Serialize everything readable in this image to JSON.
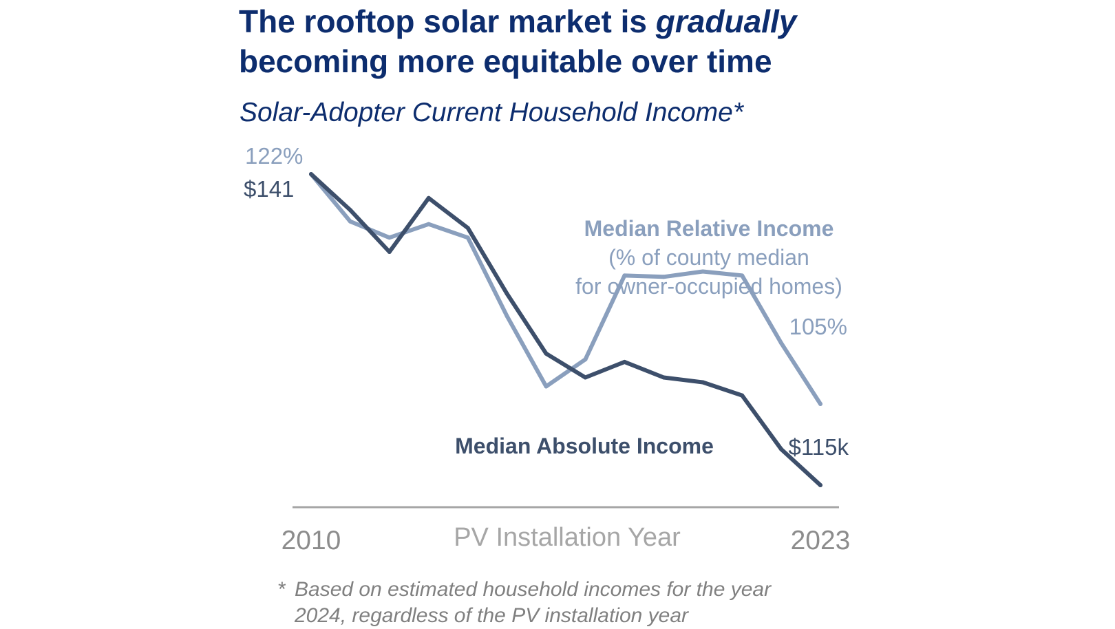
{
  "header": {
    "title_part1": "The rooftop solar market is ",
    "title_emphasis": "gradually",
    "title_part2": "becoming more equitable over time",
    "subtitle": "Solar-Adopter Current Household Income*"
  },
  "colors": {
    "title": "#0d2d6e",
    "absolute_series": "#3d4f6b",
    "relative_series": "#8a9fbd",
    "axis": "#a6a6a6",
    "axis_text": "#8c8c8c",
    "footnote": "#808080"
  },
  "chart_data": {
    "type": "line",
    "title": "Solar-Adopter Current Household Income*",
    "xlabel": "PV Installation Year",
    "x": [
      2010,
      2011,
      2012,
      2013,
      2014,
      2015,
      2016,
      2017,
      2018,
      2019,
      2020,
      2021,
      2022,
      2023
    ],
    "xticks": [
      "2010",
      "2023"
    ],
    "grid": false,
    "legend": "direct labels",
    "series": [
      {
        "key": "absolute",
        "name": "Median Absolute Income",
        "unit": "$k",
        "values": [
          141,
          138,
          134.5,
          139,
          136.5,
          131,
          126,
          124,
          125.3,
          124,
          123.6,
          122.5,
          118,
          115
        ],
        "start_label": "$141",
        "end_label": "$115k",
        "color": "#3d4f6b"
      },
      {
        "key": "relative",
        "name": "Median Relative Income",
        "name_line2": "(% of county median",
        "name_line3": "for owner-occupied homes)",
        "unit": "%",
        "values": [
          122,
          118.5,
          117.3,
          118.3,
          117.3,
          111.5,
          106.3,
          108.3,
          114.5,
          114.4,
          114.8,
          114.5,
          109.5,
          105
        ],
        "start_label": "122%",
        "end_label": "105%",
        "color": "#8a9fbd"
      }
    ]
  },
  "footnote": {
    "marker": "*",
    "line1": "Based on estimated household incomes for the year",
    "line2": "2024, regardless of the PV installation year"
  }
}
